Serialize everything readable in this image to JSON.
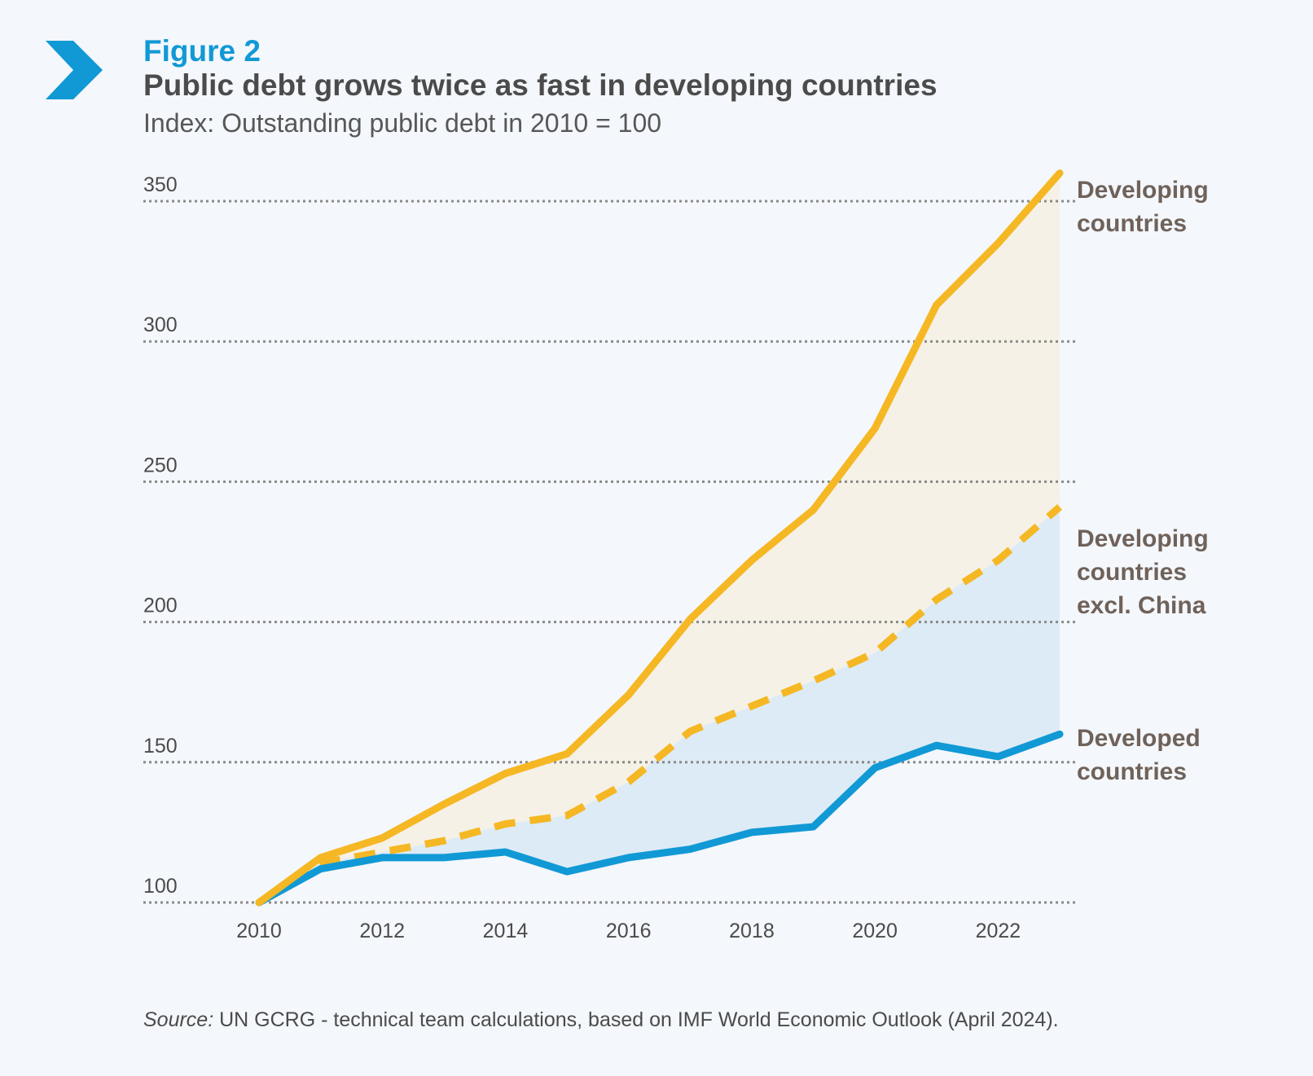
{
  "header": {
    "figure_label": "Figure 2",
    "title": "Public debt grows twice as fast in developing countries",
    "subtitle": "Index: Outstanding public debt in 2010 = 100"
  },
  "source": {
    "prefix": "Source:",
    "text": " UN GCRG - technical team calculations, based on IMF World Economic Outlook (April 2024)."
  },
  "colors": {
    "accent": "#1199d5",
    "developing": "#f5b723",
    "developed": "#1199d5",
    "fill_developing": "#f5f1e6",
    "fill_developed": "#ddebf6",
    "grid": "#8a8a8a"
  },
  "icons": {
    "chevron": "chevron-right-icon"
  },
  "chart_data": {
    "type": "line",
    "title": "Public debt grows twice as fast in developing countries",
    "subtitle": "Index: Outstanding public debt in 2010 = 100",
    "xlabel": "",
    "ylabel": "",
    "x": [
      2010,
      2011,
      2012,
      2013,
      2014,
      2015,
      2016,
      2017,
      2018,
      2019,
      2020,
      2021,
      2022,
      2023
    ],
    "x_ticks": [
      2010,
      2012,
      2014,
      2016,
      2018,
      2020,
      2022
    ],
    "y_ticks": [
      100,
      150,
      200,
      250,
      300,
      350
    ],
    "xlim": [
      2010,
      2023
    ],
    "ylim": [
      100,
      350
    ],
    "grid": "horizontal dotted",
    "legend": "direct labels at right end of lines",
    "series": [
      {
        "name": "Developing countries",
        "style": "solid",
        "values": [
          100,
          116,
          123,
          135,
          146,
          153,
          174,
          201,
          222,
          240,
          269,
          313,
          335,
          360
        ]
      },
      {
        "name": "Developing countries excl. China",
        "style": "dashed",
        "values": [
          100,
          114,
          118,
          122,
          128,
          131,
          143,
          161,
          170,
          179,
          189,
          208,
          222,
          241
        ]
      },
      {
        "name": "Developed countries",
        "style": "solid",
        "values": [
          100,
          112,
          116,
          116,
          118,
          111,
          116,
          119,
          125,
          127,
          148,
          156,
          152,
          160
        ]
      }
    ],
    "series_labels": [
      [
        "Developing",
        "countries"
      ],
      [
        "Developing",
        "countries",
        "excl. China"
      ],
      [
        "Developed",
        "countries"
      ]
    ]
  }
}
